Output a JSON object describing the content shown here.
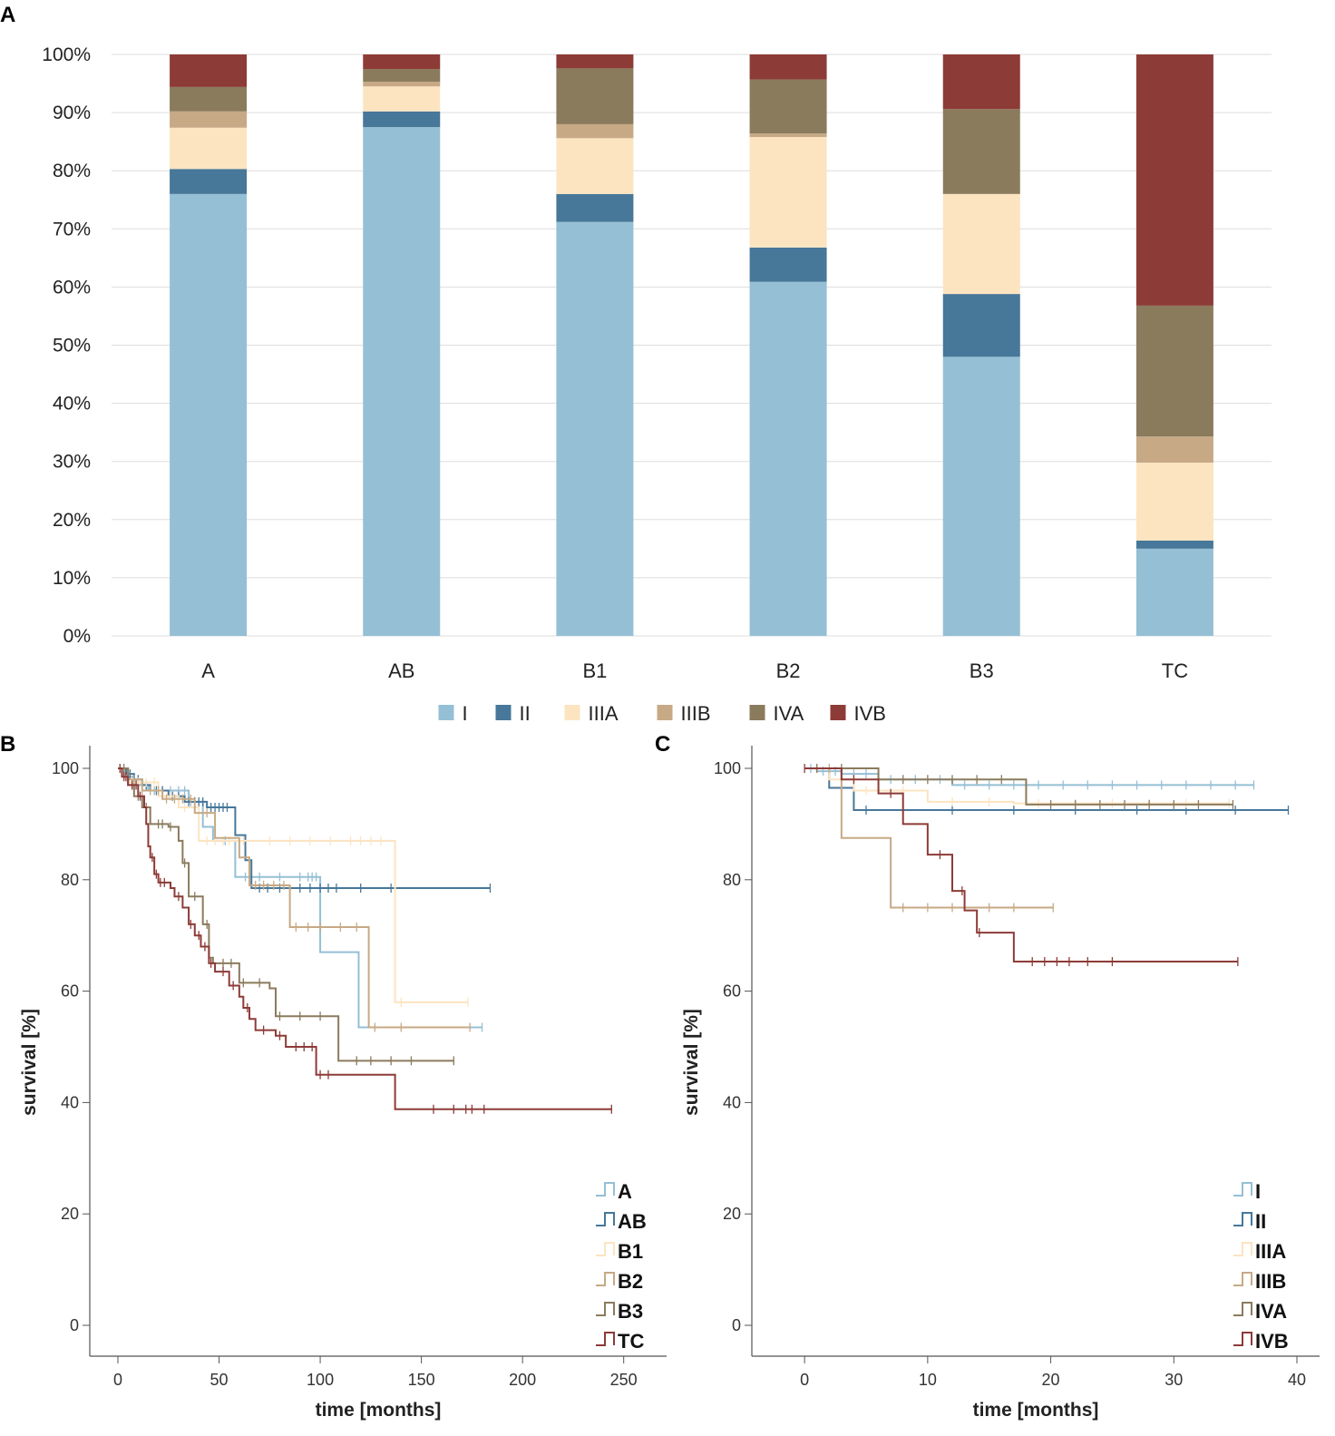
{
  "panels": {
    "a": "A",
    "b": "B",
    "c": "C"
  },
  "chart_data": [
    {
      "id": "A",
      "type": "bar",
      "stacked": true,
      "categories": [
        "A",
        "AB",
        "B1",
        "B2",
        "B3",
        "TC"
      ],
      "y_ticks": [
        "0%",
        "10%",
        "20%",
        "30%",
        "40%",
        "50%",
        "60%",
        "70%",
        "80%",
        "90%",
        "100%"
      ],
      "ylim": [
        0,
        100
      ],
      "grid": true,
      "legend_position": "bottom",
      "series": [
        {
          "name": "I",
          "color": "#95bfd5",
          "values": [
            76.0,
            87.5,
            71.2,
            60.9,
            48.0,
            15.0
          ]
        },
        {
          "name": "II",
          "color": "#477799",
          "values": [
            4.3,
            2.7,
            4.8,
            5.9,
            10.8,
            1.4
          ]
        },
        {
          "name": "IIIA",
          "color": "#fce4c1",
          "values": [
            7.1,
            4.3,
            9.6,
            19.0,
            17.2,
            13.4
          ]
        },
        {
          "name": "IIIB",
          "color": "#c7a985",
          "values": [
            2.8,
            0.8,
            2.4,
            0.6,
            0.0,
            4.5
          ]
        },
        {
          "name": "IVA",
          "color": "#8b7b5d",
          "values": [
            4.2,
            2.2,
            9.6,
            9.3,
            14.6,
            22.5
          ]
        },
        {
          "name": "IVB",
          "color": "#8d3b37",
          "values": [
            5.6,
            2.5,
            2.4,
            4.3,
            9.4,
            43.2
          ]
        }
      ]
    },
    {
      "id": "B",
      "type": "line",
      "subtype": "kaplan-meier",
      "xlabel": "time [months]",
      "ylabel": "survival [%]",
      "xlim": [
        0,
        260
      ],
      "ylim": [
        0,
        100
      ],
      "x_ticks": [
        0,
        50,
        100,
        150,
        200,
        250
      ],
      "y_ticks": [
        0,
        20,
        40,
        60,
        80,
        100
      ],
      "legend_position": "bottom-right",
      "series": [
        {
          "name": "A",
          "color": "#95bfd5",
          "steps": [
            [
              0,
              100
            ],
            [
              3,
              98.5
            ],
            [
              8,
              97
            ],
            [
              15,
              96
            ],
            [
              35,
              94
            ],
            [
              42,
              89.5
            ],
            [
              47,
              87
            ],
            [
              58,
              80.5
            ],
            [
              100,
              67
            ],
            [
              119,
              53.5
            ],
            [
              180,
              53.5
            ]
          ],
          "censor": [
            5,
            10,
            14,
            18,
            22,
            26,
            30,
            33,
            36,
            38,
            53,
            63,
            70,
            80,
            90,
            94,
            96,
            98,
            180
          ]
        },
        {
          "name": "AB",
          "color": "#477799",
          "steps": [
            [
              0,
              100
            ],
            [
              4,
              99
            ],
            [
              8,
              98
            ],
            [
              12,
              97
            ],
            [
              16,
              96
            ],
            [
              25,
              95
            ],
            [
              33,
              94
            ],
            [
              44,
              93
            ],
            [
              58,
              88
            ],
            [
              63,
              83.5
            ],
            [
              66,
              78.5
            ],
            [
              184,
              78.5
            ]
          ],
          "censor": [
            6,
            10,
            14,
            19,
            22,
            27,
            30,
            35,
            38,
            40,
            42,
            46,
            48,
            50,
            52,
            54,
            70,
            74,
            80,
            90,
            95,
            100,
            104,
            108,
            120,
            135,
            184
          ]
        },
        {
          "name": "B1",
          "color": "#fce4c1",
          "steps": [
            [
              0,
              100
            ],
            [
              5,
              97.5
            ],
            [
              20,
              95
            ],
            [
              30,
              93
            ],
            [
              40,
              87
            ],
            [
              58,
              87
            ],
            [
              137,
              58
            ],
            [
              173,
              58
            ]
          ],
          "censor": [
            10,
            14,
            18,
            26,
            33,
            44,
            48,
            52,
            55,
            62,
            75,
            85,
            95,
            105,
            115,
            120,
            125,
            130,
            140,
            173
          ]
        },
        {
          "name": "B2",
          "color": "#c7a985",
          "steps": [
            [
              0,
              100
            ],
            [
              5,
              98
            ],
            [
              12,
              96
            ],
            [
              22,
              94.5
            ],
            [
              38,
              92
            ],
            [
              48,
              87.5
            ],
            [
              60,
              84
            ],
            [
              65,
              79
            ],
            [
              85,
              71.5
            ],
            [
              124,
              53.5
            ],
            [
              174,
              53.5
            ]
          ],
          "censor": [
            8,
            12,
            16,
            20,
            24,
            28,
            32,
            36,
            44,
            68,
            72,
            77,
            82,
            88,
            94,
            100,
            110,
            118,
            127,
            140,
            174
          ]
        },
        {
          "name": "B3",
          "color": "#8b7b5d",
          "steps": [
            [
              0,
              100
            ],
            [
              5,
              97
            ],
            [
              8,
              95
            ],
            [
              12,
              93
            ],
            [
              16,
              90
            ],
            [
              25,
              89.5
            ],
            [
              30,
              87
            ],
            [
              32,
              83
            ],
            [
              35,
              77
            ],
            [
              42,
              72
            ],
            [
              45,
              66
            ],
            [
              47,
              65
            ],
            [
              60,
              61.5
            ],
            [
              75,
              60.5
            ],
            [
              78,
              55.5
            ],
            [
              95,
              55.5
            ],
            [
              109,
              47.5
            ],
            [
              166,
              47.5
            ]
          ],
          "censor": [
            3,
            7,
            10,
            14,
            20,
            22,
            26,
            33,
            38,
            44,
            52,
            56,
            62,
            70,
            80,
            90,
            100,
            118,
            125,
            135,
            145,
            166
          ]
        },
        {
          "name": "TC",
          "color": "#8d3b37",
          "steps": [
            [
              0,
              100
            ],
            [
              2,
              98.5
            ],
            [
              5,
              97
            ],
            [
              10,
              95
            ],
            [
              13,
              93
            ],
            [
              14,
              90
            ],
            [
              15,
              86
            ],
            [
              16,
              84
            ],
            [
              18,
              81
            ],
            [
              20,
              79.5
            ],
            [
              26,
              78.5
            ],
            [
              28,
              77
            ],
            [
              32,
              75
            ],
            [
              35,
              72
            ],
            [
              38,
              70
            ],
            [
              41,
              68
            ],
            [
              45,
              65
            ],
            [
              48,
              63.5
            ],
            [
              55,
              61
            ],
            [
              60,
              59
            ],
            [
              62,
              57
            ],
            [
              65,
              55
            ],
            [
              68,
              53
            ],
            [
              78,
              52
            ],
            [
              83,
              50
            ],
            [
              98,
              45
            ],
            [
              137,
              38.8
            ],
            [
              244,
              38.8
            ]
          ],
          "censor": [
            1,
            3,
            4,
            7,
            9,
            11,
            17,
            19,
            21,
            23,
            30,
            36,
            40,
            43,
            46,
            52,
            57,
            64,
            72,
            80,
            88,
            92,
            96,
            100,
            104,
            156,
            166,
            172,
            175,
            181,
            244
          ]
        }
      ]
    },
    {
      "id": "C",
      "type": "line",
      "subtype": "kaplan-meier",
      "xlabel": "time [months]",
      "ylabel": "survival [%]",
      "xlim": [
        -2,
        40
      ],
      "ylim": [
        0,
        100
      ],
      "x_ticks": [
        0,
        10,
        20,
        30,
        40
      ],
      "y_ticks": [
        0,
        20,
        40,
        60,
        80,
        100
      ],
      "legend_position": "bottom-right",
      "series": [
        {
          "name": "I",
          "color": "#95bfd5",
          "steps": [
            [
              0,
              100
            ],
            [
              1,
              99.5
            ],
            [
              3,
              99
            ],
            [
              6,
              98
            ],
            [
              12,
              97
            ],
            [
              36.5,
              97
            ]
          ],
          "censor": [
            0.5,
            1.5,
            2.5,
            4,
            5,
            7,
            9,
            11,
            13,
            15,
            17,
            19,
            21,
            23,
            25,
            27,
            29,
            31,
            33,
            35,
            36.5
          ]
        },
        {
          "name": "II",
          "color": "#477799",
          "steps": [
            [
              0,
              100
            ],
            [
              2,
              96.5
            ],
            [
              4,
              92.5
            ],
            [
              39.3,
              92.5
            ]
          ],
          "censor": [
            1,
            3,
            5,
            8,
            12,
            17,
            22,
            27,
            31,
            35,
            39.3
          ]
        },
        {
          "name": "IIIA",
          "color": "#fce4c1",
          "steps": [
            [
              0,
              100
            ],
            [
              2,
              98
            ],
            [
              4,
              96
            ],
            [
              10,
              94
            ],
            [
              17,
              93.7
            ],
            [
              34.5,
              93.7
            ]
          ],
          "censor": [
            1,
            3,
            5,
            8,
            12,
            15,
            19,
            22,
            25,
            28,
            31,
            34.5
          ]
        },
        {
          "name": "IIIB",
          "color": "#c7a985",
          "steps": [
            [
              0,
              100
            ],
            [
              3,
              87.5
            ],
            [
              7,
              75
            ],
            [
              20.2,
              75
            ]
          ],
          "censor": [
            1,
            2,
            8,
            10,
            12,
            15,
            17,
            20.2
          ]
        },
        {
          "name": "IVA",
          "color": "#8b7b5d",
          "steps": [
            [
              0,
              100
            ],
            [
              6,
              98
            ],
            [
              18,
              93.5
            ],
            [
              34.8,
              93.5
            ]
          ],
          "censor": [
            1,
            3,
            8,
            10,
            12,
            14,
            16,
            20,
            22,
            24,
            26,
            28,
            30,
            32,
            34.8
          ]
        },
        {
          "name": "IVB",
          "color": "#8d3b37",
          "steps": [
            [
              0,
              100
            ],
            [
              3,
              98
            ],
            [
              6,
              95.5
            ],
            [
              8,
              90
            ],
            [
              10,
              84.5
            ],
            [
              12,
              78
            ],
            [
              13,
              74.5
            ],
            [
              14,
              70.5
            ],
            [
              17,
              65.3
            ],
            [
              35.2,
              65.3
            ]
          ],
          "censor": [
            0,
            4,
            7,
            11,
            12.8,
            14.2,
            18.5,
            19.5,
            20.5,
            21.5,
            23,
            25,
            35.2
          ]
        }
      ]
    }
  ]
}
